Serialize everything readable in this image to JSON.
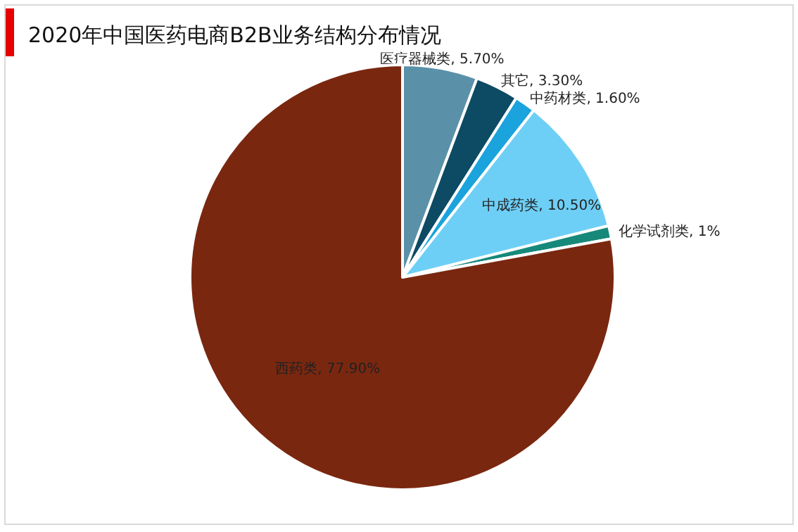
{
  "chart_data": {
    "type": "pie",
    "title": "2020年中国医药电商B2B业务结构分布情况",
    "categories": [
      "医疗器械类",
      "其它",
      "中药材类",
      "中成药类",
      "化学试剂类",
      "西药类"
    ],
    "values": [
      5.7,
      3.3,
      1.6,
      10.5,
      1,
      77.9
    ],
    "value_labels": [
      "5.70%",
      "3.30%",
      "1.60%",
      "10.50%",
      "1%",
      "77.90%"
    ],
    "colors": [
      "#5b91a8",
      "#0d4a63",
      "#1aa3dc",
      "#6ecff6",
      "#16897a",
      "#7a2710"
    ]
  }
}
